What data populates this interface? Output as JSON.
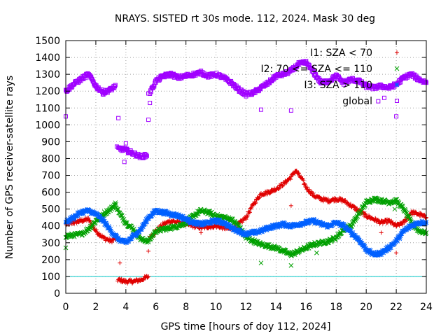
{
  "chart_data": {
    "type": "scatter",
    "title": "NRAYS. SISTED rt 30s mode. 112, 2024. Mask 30 deg",
    "xlabel": "GPS time [hours of doy 112, 2024]",
    "ylabel": "Number of GPS receiver-satellite rays",
    "xlim": [
      0,
      24
    ],
    "ylim": [
      0,
      1500
    ],
    "xticks": [
      0,
      2,
      4,
      6,
      8,
      10,
      12,
      14,
      16,
      18,
      20,
      22,
      24
    ],
    "yticks": [
      0,
      100,
      200,
      300,
      400,
      500,
      600,
      700,
      800,
      900,
      1000,
      1100,
      1200,
      1300,
      1400,
      1500
    ],
    "grid": true,
    "legend_position": "top-right",
    "threshold_line": {
      "y": 100,
      "color": "#00c8c8"
    },
    "series": [
      {
        "name": "I1: SZA < 70",
        "marker": "plus",
        "color": "#e00000",
        "points": [
          [
            0,
            410
          ],
          [
            0.5,
            420
          ],
          [
            1,
            430
          ],
          [
            1.5,
            440
          ],
          [
            2,
            370
          ],
          [
            2.5,
            330
          ],
          [
            3,
            310
          ],
          [
            3.4,
            330
          ],
          [
            3.5,
            80
          ],
          [
            4,
            70
          ],
          [
            4.5,
            70
          ],
          [
            5,
            80
          ],
          [
            5.5,
            100
          ],
          [
            5.6,
            330
          ],
          [
            6,
            370
          ],
          [
            6.5,
            410
          ],
          [
            7,
            430
          ],
          [
            7.5,
            420
          ],
          [
            8,
            410
          ],
          [
            8.5,
            400
          ],
          [
            9,
            390
          ],
          [
            9.5,
            395
          ],
          [
            10,
            400
          ],
          [
            10.5,
            390
          ],
          [
            11,
            380
          ],
          [
            11.5,
            410
          ],
          [
            12,
            450
          ],
          [
            12.5,
            530
          ],
          [
            13,
            590
          ],
          [
            13.5,
            600
          ],
          [
            14,
            620
          ],
          [
            14.5,
            650
          ],
          [
            15,
            690
          ],
          [
            15.3,
            730
          ],
          [
            15.7,
            680
          ],
          [
            16,
            630
          ],
          [
            16.5,
            580
          ],
          [
            17,
            560
          ],
          [
            17.5,
            550
          ],
          [
            18,
            560
          ],
          [
            18.5,
            550
          ],
          [
            19,
            520
          ],
          [
            19.5,
            490
          ],
          [
            20,
            460
          ],
          [
            20.5,
            440
          ],
          [
            21,
            420
          ],
          [
            21.5,
            430
          ],
          [
            22,
            400
          ],
          [
            22.5,
            420
          ],
          [
            23,
            480
          ],
          [
            23.5,
            470
          ],
          [
            24,
            450
          ]
        ],
        "outliers": [
          [
            3.6,
            180
          ],
          [
            5.5,
            250
          ],
          [
            15,
            520
          ],
          [
            21,
            360
          ],
          [
            22,
            240
          ],
          [
            9,
            360
          ]
        ]
      },
      {
        "name": "I2: 70 <= SZA <= 110",
        "marker": "cross",
        "color": "#00a000",
        "points": [
          [
            0,
            340
          ],
          [
            0.5,
            345
          ],
          [
            1,
            350
          ],
          [
            1.5,
            380
          ],
          [
            2,
            430
          ],
          [
            2.5,
            470
          ],
          [
            3,
            500
          ],
          [
            3.3,
            530
          ],
          [
            3.6,
            470
          ],
          [
            4,
            420
          ],
          [
            4.5,
            380
          ],
          [
            5,
            320
          ],
          [
            5.5,
            310
          ],
          [
            6,
            370
          ],
          [
            6.5,
            380
          ],
          [
            7,
            390
          ],
          [
            7.5,
            400
          ],
          [
            8,
            420
          ],
          [
            8.5,
            460
          ],
          [
            9,
            490
          ],
          [
            9.5,
            480
          ],
          [
            10,
            460
          ],
          [
            10.5,
            450
          ],
          [
            11,
            440
          ],
          [
            11.5,
            400
          ],
          [
            12,
            330
          ],
          [
            12.5,
            310
          ],
          [
            13,
            290
          ],
          [
            13.5,
            280
          ],
          [
            14,
            270
          ],
          [
            14.5,
            250
          ],
          [
            15,
            230
          ],
          [
            15.5,
            250
          ],
          [
            16,
            270
          ],
          [
            16.5,
            290
          ],
          [
            17,
            300
          ],
          [
            17.5,
            310
          ],
          [
            18,
            330
          ],
          [
            18.5,
            380
          ],
          [
            19,
            400
          ],
          [
            19.5,
            470
          ],
          [
            20,
            540
          ],
          [
            20.5,
            560
          ],
          [
            21,
            550
          ],
          [
            21.5,
            540
          ],
          [
            22,
            550
          ],
          [
            22.5,
            500
          ],
          [
            23,
            420
          ],
          [
            23.5,
            370
          ],
          [
            24,
            360
          ]
        ],
        "outliers": [
          [
            0,
            270
          ],
          [
            13,
            180
          ],
          [
            15,
            165
          ],
          [
            16.7,
            240
          ],
          [
            21.9,
            500
          ]
        ]
      },
      {
        "name": "I3: SZA > 110",
        "marker": "star",
        "color": "#0060ff",
        "points": [
          [
            0,
            420
          ],
          [
            0.5,
            450
          ],
          [
            1,
            480
          ],
          [
            1.5,
            490
          ],
          [
            2,
            470
          ],
          [
            2.5,
            430
          ],
          [
            3,
            370
          ],
          [
            3.5,
            320
          ],
          [
            4,
            300
          ],
          [
            4.5,
            340
          ],
          [
            5,
            380
          ],
          [
            5.5,
            450
          ],
          [
            6,
            490
          ],
          [
            6.5,
            480
          ],
          [
            7,
            470
          ],
          [
            7.5,
            460
          ],
          [
            8,
            440
          ],
          [
            8.5,
            420
          ],
          [
            9,
            410
          ],
          [
            9.5,
            420
          ],
          [
            10,
            430
          ],
          [
            10.5,
            420
          ],
          [
            11,
            390
          ],
          [
            11.5,
            370
          ],
          [
            12,
            350
          ],
          [
            12.5,
            360
          ],
          [
            13,
            370
          ],
          [
            13.5,
            390
          ],
          [
            14,
            400
          ],
          [
            14.5,
            410
          ],
          [
            15,
            400
          ],
          [
            15.5,
            410
          ],
          [
            16,
            420
          ],
          [
            16.5,
            430
          ],
          [
            17,
            410
          ],
          [
            17.5,
            400
          ],
          [
            18,
            420
          ],
          [
            18.5,
            400
          ],
          [
            19,
            360
          ],
          [
            19.5,
            320
          ],
          [
            20,
            260
          ],
          [
            20.5,
            230
          ],
          [
            21,
            240
          ],
          [
            21.5,
            270
          ],
          [
            22,
            310
          ],
          [
            22.5,
            370
          ],
          [
            23,
            400
          ],
          [
            23.5,
            420
          ],
          [
            24,
            420
          ]
        ],
        "outliers": []
      },
      {
        "name": "global",
        "marker": "square",
        "color": "#a000ff",
        "points": [
          [
            0,
            1200
          ],
          [
            0.5,
            1240
          ],
          [
            1,
            1270
          ],
          [
            1.5,
            1300
          ],
          [
            1.8,
            1260
          ],
          [
            2,
            1230
          ],
          [
            2.5,
            1190
          ],
          [
            3,
            1210
          ],
          [
            3.3,
            1230
          ],
          [
            3.5,
            860
          ],
          [
            4,
            850
          ],
          [
            4.5,
            830
          ],
          [
            5,
            810
          ],
          [
            5.4,
            820
          ],
          [
            5.6,
            1190
          ],
          [
            6,
            1260
          ],
          [
            6.5,
            1290
          ],
          [
            7,
            1300
          ],
          [
            7.5,
            1280
          ],
          [
            8,
            1290
          ],
          [
            8.5,
            1300
          ],
          [
            9,
            1310
          ],
          [
            9.5,
            1290
          ],
          [
            10,
            1300
          ],
          [
            10.5,
            1280
          ],
          [
            11,
            1250
          ],
          [
            11.5,
            1210
          ],
          [
            12,
            1180
          ],
          [
            12.5,
            1190
          ],
          [
            13,
            1220
          ],
          [
            13.5,
            1250
          ],
          [
            14,
            1290
          ],
          [
            14.5,
            1300
          ],
          [
            15,
            1320
          ],
          [
            15.5,
            1360
          ],
          [
            16,
            1370
          ],
          [
            16.5,
            1310
          ],
          [
            17,
            1250
          ],
          [
            17.5,
            1260
          ],
          [
            18,
            1290
          ],
          [
            18.5,
            1250
          ],
          [
            19,
            1270
          ],
          [
            19.5,
            1260
          ],
          [
            20,
            1230
          ],
          [
            20.5,
            1220
          ],
          [
            21,
            1230
          ],
          [
            21.5,
            1220
          ],
          [
            22,
            1240
          ],
          [
            22.5,
            1280
          ],
          [
            23,
            1300
          ],
          [
            23.5,
            1270
          ],
          [
            24,
            1250
          ]
        ],
        "outliers": [
          [
            0,
            1050
          ],
          [
            3.5,
            1040
          ],
          [
            3.9,
            780
          ],
          [
            4,
            890
          ],
          [
            5.5,
            1030
          ],
          [
            5.6,
            1130
          ],
          [
            13,
            1090
          ],
          [
            15,
            1085
          ],
          [
            20.8,
            1140
          ],
          [
            22,
            1050
          ],
          [
            21.2,
            1160
          ]
        ]
      }
    ]
  }
}
